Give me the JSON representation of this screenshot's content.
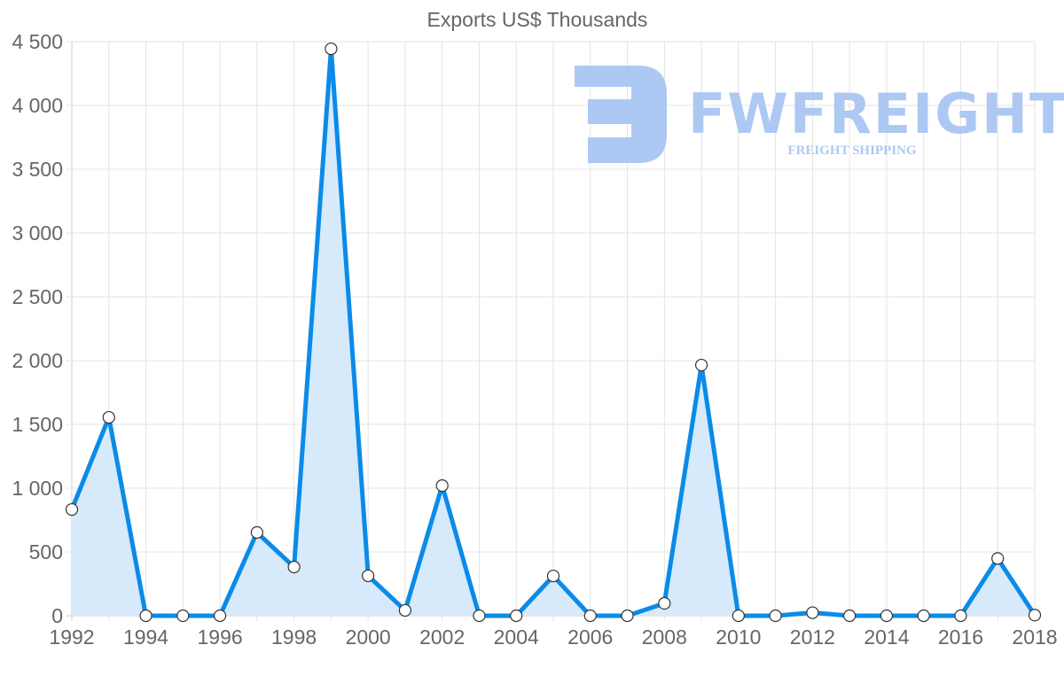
{
  "chart_data": {
    "type": "area",
    "title": "Exports US$ Thousands",
    "xlabel": "",
    "ylabel": "",
    "x": [
      1992,
      1993,
      1994,
      1995,
      1996,
      1997,
      1998,
      1999,
      2000,
      2001,
      2002,
      2003,
      2004,
      2005,
      2006,
      2007,
      2008,
      2009,
      2010,
      2011,
      2012,
      2013,
      2014,
      2015,
      2016,
      2017,
      2018
    ],
    "series": [
      {
        "name": "Exports US$ Thousands",
        "values": [
          833,
          1555,
          0,
          0,
          0,
          653,
          382,
          4444,
          313,
          42,
          1020,
          0,
          0,
          312,
          0,
          0,
          97,
          1965,
          0,
          0,
          24,
          0,
          0,
          0,
          0,
          449,
          5
        ]
      }
    ],
    "ylim": [
      0,
      4500
    ],
    "yticks": [
      "0",
      "500",
      "1 000",
      "1 500",
      "2 000",
      "2 500",
      "3 000",
      "3 500",
      "4 000",
      "4 500"
    ],
    "xticks": [
      "1992",
      "1994",
      "1996",
      "1998",
      "2000",
      "2002",
      "2004",
      "2006",
      "2008",
      "2010",
      "2012",
      "2014",
      "2016",
      "2018"
    ],
    "grid": true,
    "legend": "none",
    "colors": {
      "line": "#0b8be8",
      "fill": "#d6eafb",
      "grid": "#e3e3e3",
      "point_fill": "#ffffff",
      "point_stroke": "#333333"
    }
  },
  "watermark": {
    "brand": "FWFREIGHT",
    "tagline": "FREIGHT SHIPPING",
    "color": "#a9c6f2"
  }
}
